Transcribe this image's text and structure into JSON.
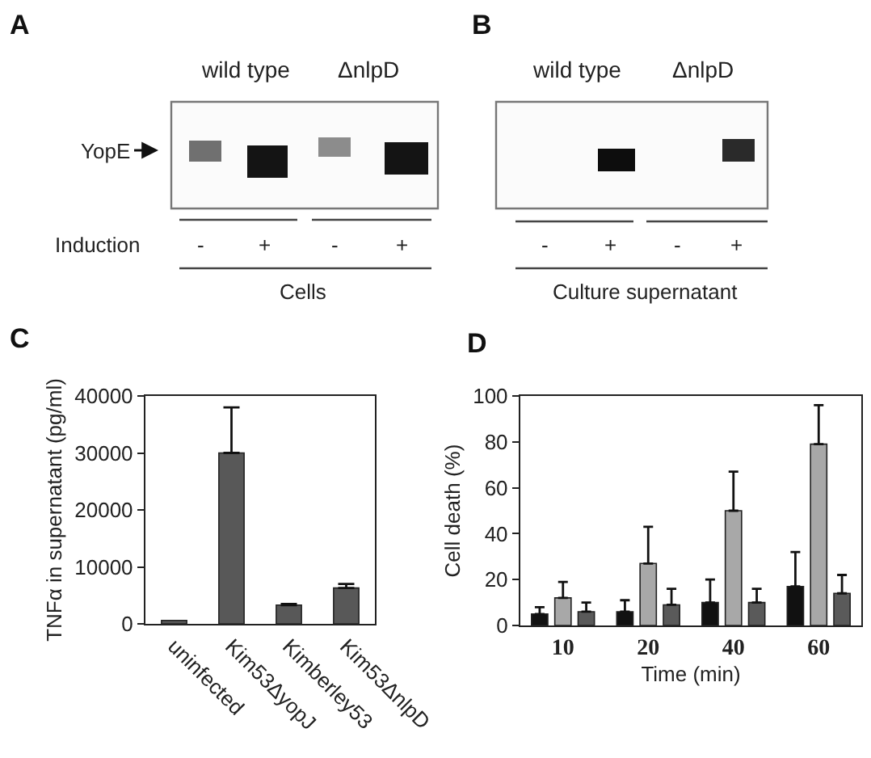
{
  "chart_data": [
    {
      "type": "other",
      "title": "A",
      "annotations": [
        "wild type",
        "ΔnlpD",
        "YopE",
        "Induction",
        "-",
        "+",
        "-",
        "+",
        "Cells"
      ]
    },
    {
      "type": "other",
      "title": "B",
      "annotations": [
        "wild type",
        "ΔnlpD",
        "-",
        "+",
        "-",
        "+",
        "Culture supernatant"
      ]
    },
    {
      "type": "bar",
      "title": "C",
      "ylabel": "TNFα in supernatant (pg/ml)",
      "categories": [
        "uninfected",
        "Kim53ΔyopJ",
        "Kimberley53",
        "Kim53ΔnlpD"
      ],
      "values": [
        600,
        30000,
        3300,
        6300
      ],
      "errors": [
        null,
        [
          30000,
          38000
        ],
        [
          3300,
          3500
        ],
        [
          6300,
          7000
        ]
      ],
      "color": "#585858",
      "ylim": [
        0,
        40000
      ],
      "yticks": [
        0,
        10000,
        20000,
        30000,
        40000
      ]
    },
    {
      "type": "bar",
      "title": "D",
      "xlabel": "Time (min)",
      "ylabel": "Cell death (%)",
      "categories": [
        "10",
        "20",
        "40",
        "60"
      ],
      "series": [
        {
          "color": "#111111",
          "values": [
            5,
            6,
            10,
            17
          ],
          "errors": [
            [
              5,
              8
            ],
            [
              6,
              11
            ],
            [
              10,
              20
            ],
            [
              17,
              32
            ]
          ]
        },
        {
          "color": "#a8a8a8",
          "values": [
            12,
            27,
            50,
            79
          ],
          "errors": [
            [
              12,
              19
            ],
            [
              27,
              43
            ],
            [
              50,
              67
            ],
            [
              79,
              96
            ]
          ]
        },
        {
          "color": "#5a5a5a",
          "values": [
            6,
            9,
            10,
            14
          ],
          "errors": [
            [
              6,
              10
            ],
            [
              9,
              16
            ],
            [
              10,
              16
            ],
            [
              14,
              22
            ]
          ]
        }
      ],
      "ylim": [
        0,
        100
      ],
      "yticks": [
        0,
        20,
        40,
        60,
        80,
        100
      ]
    }
  ]
}
